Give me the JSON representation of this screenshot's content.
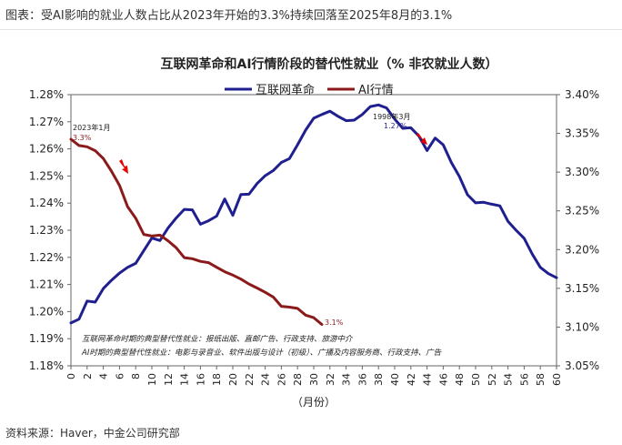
{
  "caption": "图表：受AI影响的就业人数占比从2023年开始的3.3%持续回落至2025年8月的3.1%",
  "source": "资料来源：Haver，中金公司研究部",
  "chart_data": {
    "type": "line",
    "title": "互联网革命和AI行情阶段的替代性就业（% 非农就业人数）",
    "xlabel": "（月份）",
    "x_ticks": [
      0,
      2,
      4,
      6,
      8,
      10,
      12,
      14,
      16,
      18,
      20,
      22,
      24,
      26,
      28,
      30,
      32,
      34,
      36,
      38,
      40,
      42,
      44,
      46,
      48,
      50,
      52,
      54,
      56,
      58,
      60
    ],
    "xlim": [
      0,
      60
    ],
    "y_left": {
      "ticks": [
        "1.18%",
        "1.19%",
        "1.20%",
        "1.21%",
        "1.22%",
        "1.23%",
        "1.24%",
        "1.25%",
        "1.26%",
        "1.27%",
        "1.28%"
      ],
      "lim": [
        1.18,
        1.28
      ]
    },
    "y_right": {
      "ticks": [
        "3.05%",
        "3.10%",
        "3.15%",
        "3.20%",
        "3.25%",
        "3.30%",
        "3.35%",
        "3.40%"
      ],
      "lim": [
        3.05,
        3.4
      ]
    },
    "series": [
      {
        "name": "互联网革命",
        "axis": "left",
        "color": "#1f1f8f",
        "x": [
          0,
          1,
          2,
          3,
          4,
          5,
          6,
          7,
          8,
          9,
          10,
          11,
          12,
          13,
          14,
          15,
          16,
          17,
          18,
          19,
          20,
          21,
          22,
          23,
          24,
          25,
          26,
          27,
          28,
          29,
          30,
          31,
          32,
          33,
          34,
          35,
          36,
          37,
          38,
          39,
          40,
          41,
          42,
          43,
          44,
          45,
          46,
          47,
          48,
          49,
          50,
          51,
          52,
          53,
          54,
          55,
          56,
          57,
          58,
          59,
          60
        ],
        "values": [
          1.1958,
          1.1972,
          1.2039,
          1.2035,
          1.2085,
          1.2115,
          1.2142,
          1.2163,
          1.2178,
          1.2225,
          1.2271,
          1.2262,
          1.2308,
          1.2345,
          1.2377,
          1.2375,
          1.2322,
          1.2335,
          1.2352,
          1.2415,
          1.2355,
          1.2432,
          1.2433,
          1.2472,
          1.2501,
          1.252,
          1.255,
          1.2564,
          1.2615,
          1.2669,
          1.2713,
          1.2727,
          1.2739,
          1.272,
          1.2704,
          1.2706,
          1.2727,
          1.2756,
          1.2762,
          1.2751,
          1.271,
          1.2676,
          1.2678,
          1.2647,
          1.2594,
          1.264,
          1.2615,
          1.255,
          1.2498,
          1.2431,
          1.2401,
          1.2403,
          1.2396,
          1.239,
          1.2333,
          1.23,
          1.227,
          1.2212,
          1.2163,
          1.214,
          1.2125
        ]
      },
      {
        "name": "AI行情",
        "axis": "right",
        "color": "#8b1a1a",
        "x": [
          0,
          1,
          2,
          3,
          4,
          5,
          6,
          7,
          8,
          9,
          10,
          11,
          12,
          13,
          14,
          15,
          16,
          17,
          18,
          19,
          20,
          21,
          22,
          23,
          24,
          25,
          26,
          27,
          28,
          29,
          30,
          31
        ],
        "values": [
          3.3425,
          3.3343,
          3.3327,
          3.3277,
          3.3176,
          3.3014,
          3.2829,
          3.2554,
          3.2406,
          3.2196,
          3.2175,
          3.2187,
          3.2114,
          3.2024,
          3.1896,
          3.1882,
          3.1848,
          3.1832,
          3.1772,
          3.1715,
          3.1671,
          3.1619,
          3.1556,
          3.1504,
          3.1449,
          3.1388,
          3.1268,
          3.1257,
          3.1241,
          3.1154,
          3.1121,
          3.1034
        ]
      }
    ],
    "annotations": {
      "start_date": "2023年1月",
      "start_value": "3.3%",
      "end_value": "3.1%",
      "peak_date": "1998年3月",
      "peak_value": "1.27%"
    },
    "note_lines": [
      "互联网革命时期的典型替代性就业：报纸出版、直邮广告、行政支持、旅游中介",
      "AI时期的典型替代性就业：电影与录音业、软件出版与设计（初级）、广播及内容服务商、行政支持、广告"
    ]
  }
}
